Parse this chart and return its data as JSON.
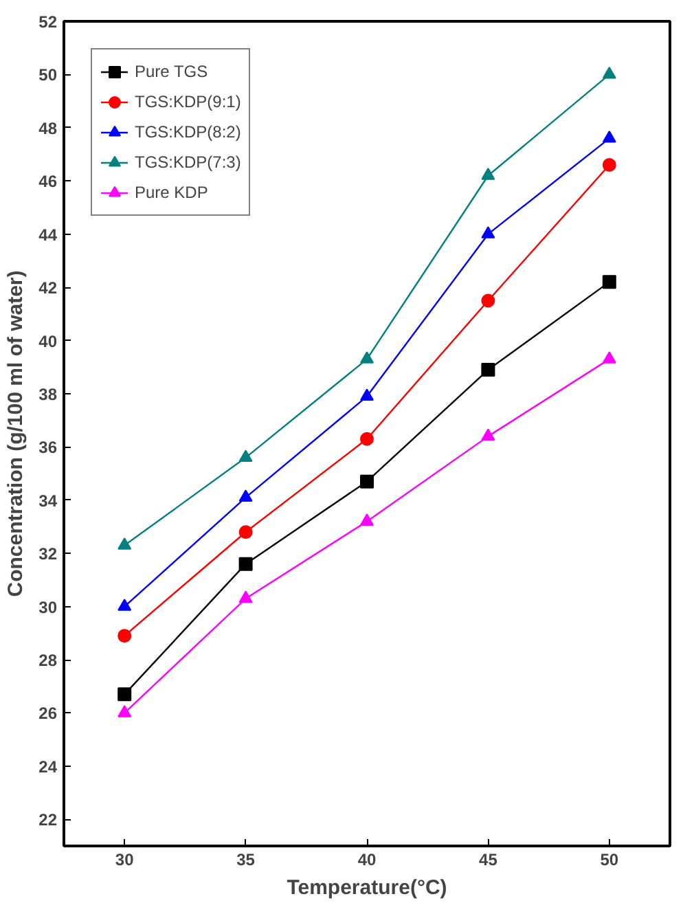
{
  "chart_data": {
    "type": "line",
    "xlabel": "Temperature(°C)",
    "ylabel": "Concentration (g/100 ml of water)",
    "x": [
      30,
      35,
      40,
      45,
      50
    ],
    "xlim": [
      27.5,
      52.5
    ],
    "xticks": [
      30,
      35,
      40,
      45,
      50
    ],
    "ylim": [
      21,
      52
    ],
    "yticks": [
      22,
      24,
      26,
      28,
      30,
      32,
      34,
      36,
      38,
      40,
      42,
      44,
      46,
      48,
      50,
      52
    ],
    "grid": false,
    "legend": "top left",
    "line_style": "solid",
    "series": [
      {
        "name": "Pure TGS",
        "color": "#000000",
        "marker": "square",
        "values": [
          26.7,
          31.6,
          34.7,
          38.9,
          42.2
        ]
      },
      {
        "name": "TGS:KDP(9:1)",
        "color": "#ff0000",
        "marker": "circle",
        "values": [
          28.9,
          32.8,
          36.3,
          41.5,
          46.6
        ]
      },
      {
        "name": "TGS:KDP(8:2)",
        "color": "#0000ff",
        "marker": "triangle",
        "values": [
          30.0,
          34.1,
          37.9,
          44.0,
          47.6
        ]
      },
      {
        "name": "TGS:KDP(7:3)",
        "color": "#008080",
        "marker": "triangle",
        "values": [
          32.3,
          35.6,
          39.3,
          46.2,
          50.0
        ]
      },
      {
        "name": "Pure KDP",
        "color": "#ff00ff",
        "marker": "triangle",
        "values": [
          26.0,
          30.3,
          33.2,
          36.4,
          39.3
        ]
      }
    ]
  }
}
